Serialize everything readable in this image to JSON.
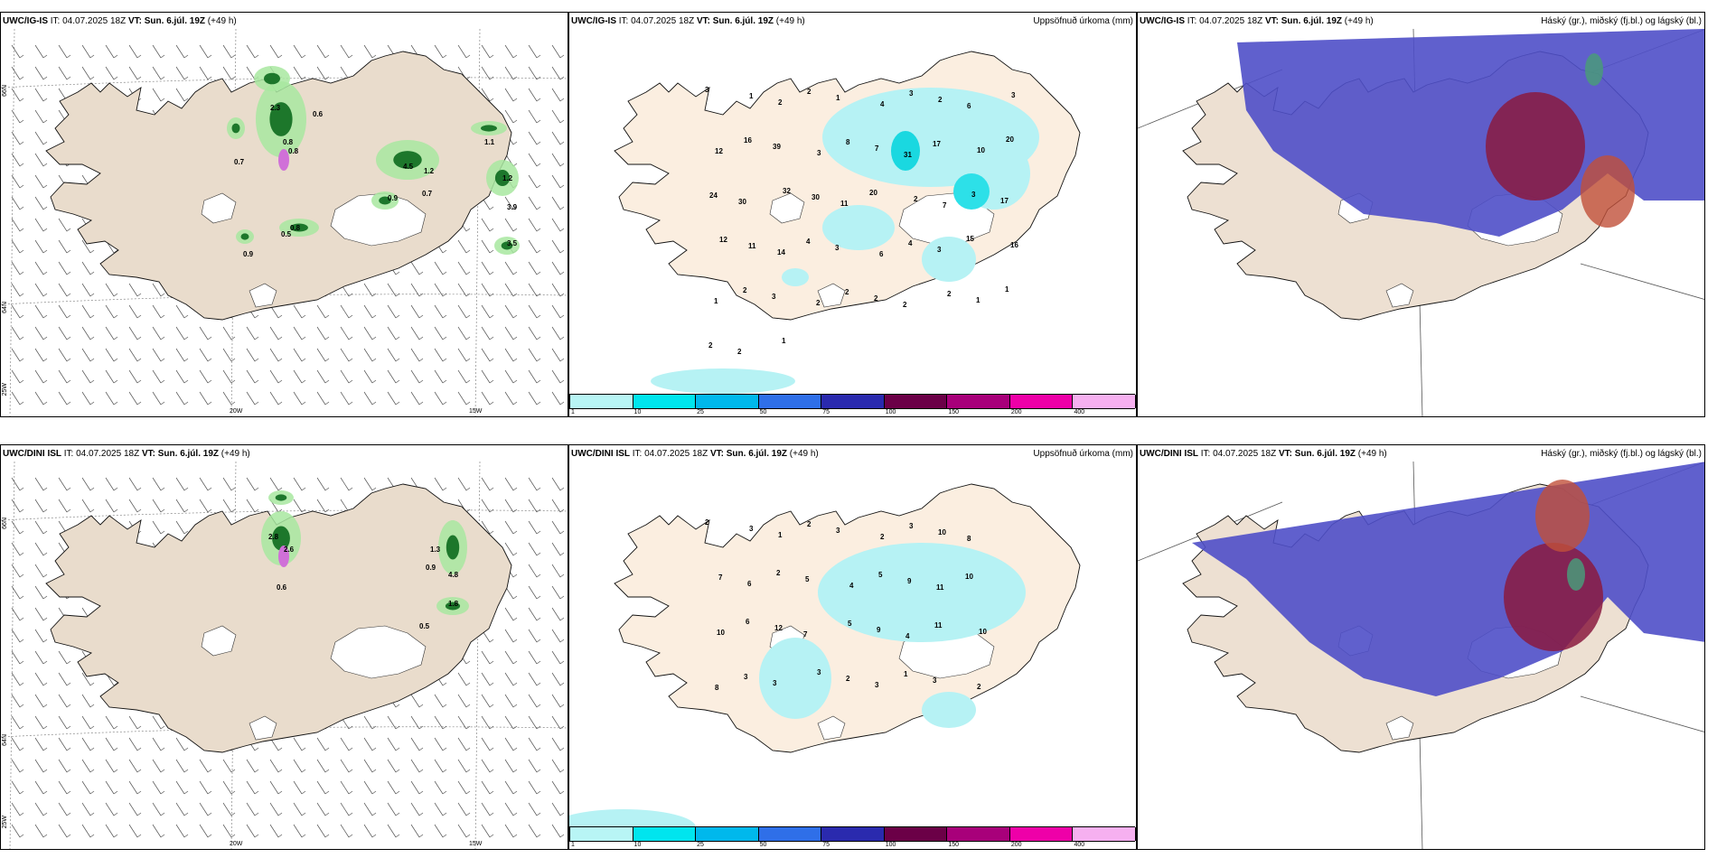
{
  "panels": [
    {
      "model": "UWC/IG-IS",
      "it_label": "IT:",
      "it": "04.07.2025 18Z",
      "vt_label": "VT:",
      "vt": "Sun. 6.júl. 19Z",
      "lead": "(+49 h)",
      "title": ""
    },
    {
      "model": "UWC/IG-IS",
      "it_label": "IT:",
      "it": "04.07.2025 18Z",
      "vt_label": "VT:",
      "vt": "Sun. 6.júl. 19Z",
      "lead": "(+49 h)",
      "title": "Uppsöfnuð úrkoma (mm)"
    },
    {
      "model": "UWC/IG-IS",
      "it_label": "IT:",
      "it": "04.07.2025 18Z",
      "vt_label": "VT:",
      "vt": "Sun. 6.júl. 19Z",
      "lead": "(+49 h)",
      "title": "Háský (gr.), miðský (fj.bl.) og lágský (bl.)"
    },
    {
      "model": "UWC/DINI ISL",
      "it_label": "IT:",
      "it": "04.07.2025 18Z",
      "vt_label": "VT:",
      "vt": "Sun. 6.júl. 19Z",
      "lead": "(+49 h)",
      "title": ""
    },
    {
      "model": "UWC/DINI ISL",
      "it_label": "IT:",
      "it": "04.07.2025 18Z",
      "vt_label": "VT:",
      "vt": "Sun. 6.júl. 19Z",
      "lead": "(+49 h)",
      "title": "Uppsöfnuð úrkoma (mm)"
    },
    {
      "model": "UWC/DINI ISL",
      "it_label": "IT:",
      "it": "04.07.2025 18Z",
      "vt_label": "VT:",
      "vt": "Sun. 6.júl. 19Z",
      "lead": "(+49 h)",
      "title": "Háský (gr.), miðský (fj.bl.) og lágský (bl.)"
    }
  ],
  "axes": {
    "lat_top": "66N",
    "lat_bottom": "64N",
    "lat_corner": "25W",
    "lon_left": "20W",
    "lon_right": "15W"
  },
  "colorbar": {
    "colors": [
      "#b8f5f5",
      "#00e5ee",
      "#00b8ec",
      "#2f6fe8",
      "#2a2aae",
      "#6b0047",
      "#a8007a",
      "#ee00a8",
      "#f6b0f0"
    ],
    "ticks": [
      "1",
      "10",
      "25",
      "50",
      "75",
      "100",
      "150",
      "200",
      "400"
    ]
  },
  "precip_top": [
    "3",
    "1",
    "2",
    "2",
    "1",
    "4",
    "3",
    "2",
    "6",
    "3",
    "12",
    "16",
    "39",
    "3",
    "8",
    "7",
    "31",
    "17",
    "10",
    "20",
    "24",
    "30",
    "32",
    "30",
    "11",
    "20",
    "2",
    "7",
    "3",
    "17",
    "12",
    "11",
    "14",
    "4",
    "3",
    "6",
    "4",
    "3",
    "15",
    "16",
    "1",
    "2",
    "3",
    "2",
    "2",
    "2",
    "2",
    "2",
    "1",
    "1",
    "2",
    "2",
    "1"
  ],
  "precip_bottom": [
    "2",
    "3",
    "1",
    "2",
    "3",
    "2",
    "3",
    "10",
    "8",
    "7",
    "6",
    "2",
    "5",
    "4",
    "5",
    "9",
    "11",
    "10",
    "10",
    "6",
    "12",
    "7",
    "5",
    "9",
    "4",
    "11",
    "10",
    "8",
    "3",
    "3",
    "3",
    "2",
    "3",
    "1",
    "3",
    "2"
  ],
  "wind_top": [
    "0.6",
    "2.3",
    "0.8",
    "0.7",
    "1.1",
    "0.8",
    "4.5",
    "0.9",
    "1.2",
    "0.7",
    "1.2",
    "3.5",
    "3.9",
    "0.9",
    "0.5",
    "0.8"
  ],
  "wind_bottom": [
    "2.8",
    "2.6",
    "0.6",
    "1.3",
    "0.9",
    "4.8",
    "1.8",
    "0.5"
  ]
}
